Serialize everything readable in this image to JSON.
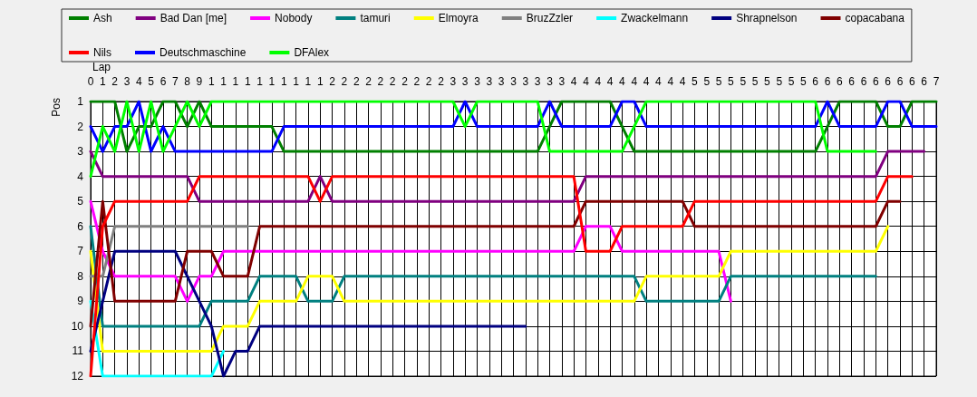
{
  "chart_data": {
    "type": "line",
    "xlabel": "Lap",
    "ylabel": "Pos",
    "categories": [
      "0",
      "1",
      "2",
      "3",
      "4",
      "5",
      "6",
      "7",
      "8",
      "9",
      "1",
      "1",
      "1",
      "1",
      "1",
      "1",
      "1",
      "1",
      "1",
      "1",
      "2",
      "2",
      "2",
      "2",
      "2",
      "2",
      "2",
      "2",
      "2",
      "2",
      "3",
      "3",
      "3",
      "3",
      "3",
      "3",
      "3",
      "3",
      "3",
      "3",
      "4",
      "4",
      "4",
      "4",
      "4",
      "4",
      "4",
      "4",
      "4",
      "4",
      "5",
      "5",
      "5",
      "5",
      "5",
      "5",
      "5",
      "5",
      "5",
      "5",
      "6",
      "6",
      "6",
      "6",
      "6",
      "6",
      "6",
      "6",
      "6",
      "6",
      "7"
    ],
    "ylim": [
      12,
      1
    ],
    "yticks": [
      1,
      2,
      3,
      4,
      5,
      6,
      7,
      8,
      9,
      10,
      11,
      12
    ],
    "grid": true,
    "legend": "top",
    "marker": "none",
    "line_style": "solid",
    "series": [
      {
        "name": "Ash",
        "color": "#008000",
        "values": [
          1,
          1,
          1,
          3,
          2,
          2,
          1,
          1,
          2,
          1,
          2,
          2,
          2,
          2,
          2,
          2,
          3,
          3,
          3,
          3,
          3,
          3,
          3,
          3,
          3,
          3,
          3,
          3,
          3,
          3,
          3,
          3,
          3,
          3,
          3,
          3,
          3,
          3,
          2,
          1,
          1,
          1,
          1,
          1,
          2,
          3,
          3,
          3,
          3,
          3,
          3,
          3,
          3,
          3,
          3,
          3,
          3,
          3,
          3,
          3,
          3,
          2,
          1,
          1,
          1,
          1,
          2,
          2,
          1,
          1,
          1
        ]
      },
      {
        "name": "Bad Dan [me]",
        "color": "#800080",
        "values": [
          3,
          4,
          4,
          4,
          4,
          4,
          4,
          4,
          4,
          5,
          5,
          5,
          5,
          5,
          5,
          5,
          5,
          5,
          5,
          4,
          5,
          5,
          5,
          5,
          5,
          5,
          5,
          5,
          5,
          5,
          5,
          5,
          5,
          5,
          5,
          5,
          5,
          5,
          5,
          5,
          5,
          4,
          4,
          4,
          4,
          4,
          4,
          4,
          4,
          4,
          4,
          4,
          4,
          4,
          4,
          4,
          4,
          4,
          4,
          4,
          4,
          4,
          4,
          4,
          4,
          4,
          3,
          3,
          3,
          3,
          null
        ]
      },
      {
        "name": "Nobody",
        "color": "#ff00ff",
        "values": [
          5,
          7,
          8,
          8,
          8,
          8,
          8,
          8,
          9,
          8,
          8,
          7,
          7,
          7,
          7,
          7,
          7,
          7,
          7,
          7,
          7,
          7,
          7,
          7,
          7,
          7,
          7,
          7,
          7,
          7,
          7,
          7,
          7,
          7,
          7,
          7,
          7,
          7,
          7,
          7,
          7,
          6,
          6,
          6,
          7,
          7,
          7,
          7,
          7,
          7,
          7,
          7,
          7,
          9,
          null,
          null,
          null,
          null,
          null,
          null,
          null,
          null,
          null,
          null,
          null,
          null,
          null,
          null,
          null,
          null,
          null
        ]
      },
      {
        "name": "tamuri",
        "color": "#008080",
        "values": [
          6,
          10,
          10,
          10,
          10,
          10,
          10,
          10,
          10,
          10,
          9,
          9,
          9,
          9,
          8,
          8,
          8,
          8,
          9,
          9,
          9,
          8,
          8,
          8,
          8,
          8,
          8,
          8,
          8,
          8,
          8,
          8,
          8,
          8,
          8,
          8,
          8,
          8,
          8,
          8,
          8,
          8,
          8,
          8,
          8,
          8,
          9,
          9,
          9,
          9,
          9,
          9,
          9,
          8,
          8,
          8,
          8,
          8,
          8,
          8,
          8,
          8,
          8,
          8,
          8,
          8,
          null,
          null,
          null,
          null,
          null
        ]
      },
      {
        "name": "Elmoyra",
        "color": "#ffff00",
        "values": [
          7,
          11,
          11,
          11,
          11,
          11,
          11,
          11,
          11,
          11,
          11,
          10,
          10,
          10,
          9,
          9,
          9,
          9,
          8,
          8,
          8,
          9,
          9,
          9,
          9,
          9,
          9,
          9,
          9,
          9,
          9,
          9,
          9,
          9,
          9,
          9,
          9,
          9,
          9,
          9,
          9,
          9,
          9,
          9,
          9,
          9,
          8,
          8,
          8,
          8,
          8,
          8,
          8,
          7,
          7,
          7,
          7,
          7,
          7,
          7,
          7,
          7,
          7,
          7,
          7,
          7,
          6,
          null,
          null,
          null,
          null
        ]
      },
      {
        "name": "BruzZzler",
        "color": "#808080",
        "values": [
          8,
          8,
          6,
          6,
          6,
          6,
          6,
          6,
          6,
          6,
          6,
          6,
          6,
          6,
          null,
          null,
          null,
          null,
          null,
          null,
          null,
          null,
          null,
          null,
          null,
          null,
          null,
          null,
          null,
          null,
          null,
          null,
          null,
          null,
          null,
          null,
          null,
          null,
          null,
          null,
          null,
          null,
          null,
          null,
          null,
          null,
          null,
          null,
          null,
          null,
          null,
          null,
          null,
          null,
          null,
          null,
          null,
          null,
          null,
          null,
          null,
          null,
          null,
          null,
          null,
          null,
          null,
          null,
          null,
          null,
          null
        ]
      },
      {
        "name": "Zwackelmann",
        "color": "#00ffff",
        "values": [
          9,
          12,
          12,
          12,
          12,
          12,
          12,
          12,
          12,
          12,
          12,
          11,
          null,
          null,
          null,
          null,
          null,
          null,
          null,
          null,
          null,
          null,
          null,
          null,
          null,
          null,
          null,
          null,
          null,
          null,
          null,
          null,
          null,
          null,
          null,
          null,
          null,
          null,
          null,
          null,
          null,
          null,
          null,
          null,
          null,
          null,
          null,
          null,
          null,
          null,
          null,
          null,
          null,
          null,
          null,
          null,
          null,
          null,
          null,
          null,
          null,
          null,
          null,
          null,
          null,
          null,
          null,
          null,
          null,
          null,
          null
        ]
      },
      {
        "name": "Shrapnelson",
        "color": "#000080",
        "values": [
          11,
          9,
          7,
          7,
          7,
          7,
          7,
          7,
          8,
          9,
          10,
          12,
          11,
          11,
          10,
          10,
          10,
          10,
          10,
          10,
          10,
          10,
          10,
          10,
          10,
          10,
          10,
          10,
          10,
          10,
          10,
          10,
          10,
          10,
          10,
          10,
          10,
          null,
          null,
          null,
          null,
          null,
          null,
          null,
          null,
          null,
          null,
          null,
          null,
          null,
          null,
          null,
          null,
          null,
          null,
          null,
          null,
          null,
          null,
          null,
          null,
          null,
          null,
          null,
          null,
          null,
          null,
          null,
          null,
          null,
          null
        ]
      },
      {
        "name": "copacabana",
        "color": "#800000",
        "values": [
          10,
          5,
          9,
          9,
          9,
          9,
          9,
          9,
          7,
          7,
          7,
          8,
          8,
          8,
          6,
          6,
          6,
          6,
          6,
          6,
          6,
          6,
          6,
          6,
          6,
          6,
          6,
          6,
          6,
          6,
          6,
          6,
          6,
          6,
          6,
          6,
          6,
          6,
          6,
          6,
          6,
          5,
          5,
          5,
          5,
          5,
          5,
          5,
          5,
          5,
          6,
          6,
          6,
          6,
          6,
          6,
          6,
          6,
          6,
          6,
          6,
          6,
          6,
          6,
          6,
          6,
          5,
          5,
          null,
          null,
          null
        ]
      },
      {
        "name": "Nils",
        "color": "#ff0000",
        "values": [
          12,
          6,
          5,
          5,
          5,
          5,
          5,
          5,
          5,
          4,
          4,
          4,
          4,
          4,
          4,
          4,
          4,
          4,
          4,
          5,
          4,
          4,
          4,
          4,
          4,
          4,
          4,
          4,
          4,
          4,
          4,
          4,
          4,
          4,
          4,
          4,
          4,
          4,
          4,
          4,
          4,
          7,
          7,
          7,
          6,
          6,
          6,
          6,
          6,
          6,
          5,
          5,
          5,
          5,
          5,
          5,
          5,
          5,
          5,
          5,
          5,
          5,
          5,
          5,
          5,
          5,
          4,
          4,
          4,
          null,
          null
        ]
      },
      {
        "name": "Deutschmaschine",
        "color": "#0000ff",
        "values": [
          2,
          3,
          2,
          2,
          1,
          3,
          2,
          3,
          3,
          3,
          3,
          3,
          3,
          3,
          3,
          3,
          2,
          2,
          2,
          2,
          2,
          2,
          2,
          2,
          2,
          2,
          2,
          2,
          2,
          2,
          2,
          1,
          2,
          2,
          2,
          2,
          2,
          2,
          1,
          2,
          2,
          2,
          2,
          2,
          1,
          1,
          2,
          2,
          2,
          2,
          2,
          2,
          2,
          2,
          2,
          2,
          2,
          2,
          2,
          2,
          2,
          1,
          2,
          2,
          2,
          2,
          1,
          1,
          2,
          2,
          2
        ]
      },
      {
        "name": "DFAlex",
        "color": "#00ff00",
        "values": [
          4,
          2,
          3,
          1,
          3,
          1,
          3,
          2,
          1,
          2,
          1,
          1,
          1,
          1,
          1,
          1,
          1,
          1,
          1,
          1,
          1,
          1,
          1,
          1,
          1,
          1,
          1,
          1,
          1,
          1,
          1,
          2,
          1,
          1,
          1,
          1,
          1,
          1,
          3,
          3,
          3,
          3,
          3,
          3,
          3,
          2,
          1,
          1,
          1,
          1,
          1,
          1,
          1,
          1,
          1,
          1,
          1,
          1,
          1,
          1,
          1,
          3,
          3,
          3,
          3,
          3,
          null,
          null,
          null,
          null,
          null
        ]
      }
    ]
  }
}
